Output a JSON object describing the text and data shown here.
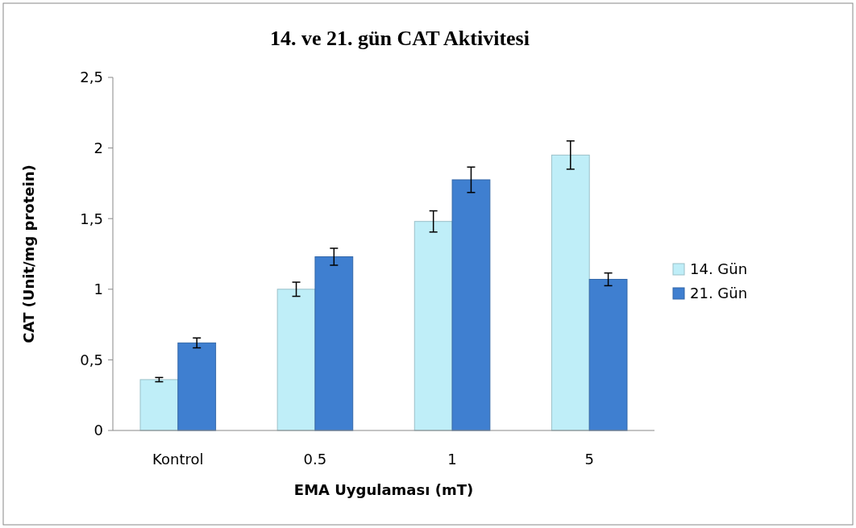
{
  "chart_data": {
    "type": "bar",
    "title": "14. ve 21. gün CAT Aktivitesi",
    "xlabel": "EMA Uygulaması (mT)",
    "ylabel": "CAT (Unit/mg protein)",
    "categories": [
      "Kontrol",
      "0.5",
      "1",
      "5"
    ],
    "series": [
      {
        "name": "14. Gün",
        "color": "#bfeef8",
        "values": [
          0.36,
          1.0,
          1.48,
          1.95
        ],
        "errors": [
          0.015,
          0.05,
          0.075,
          0.1
        ]
      },
      {
        "name": "21. Gün",
        "color": "#3f7fd0",
        "values": [
          0.62,
          1.23,
          1.775,
          1.07
        ],
        "errors": [
          0.035,
          0.06,
          0.09,
          0.045
        ]
      }
    ],
    "ylim": [
      0,
      2.5
    ],
    "yticks": [
      0,
      {
        "value": 0.5,
        "label": "0,5"
      },
      1,
      {
        "value": 1.5,
        "label": "1,5"
      },
      2,
      {
        "value": 2.5,
        "label": "2,5"
      }
    ],
    "grid": false,
    "legend": "right"
  }
}
